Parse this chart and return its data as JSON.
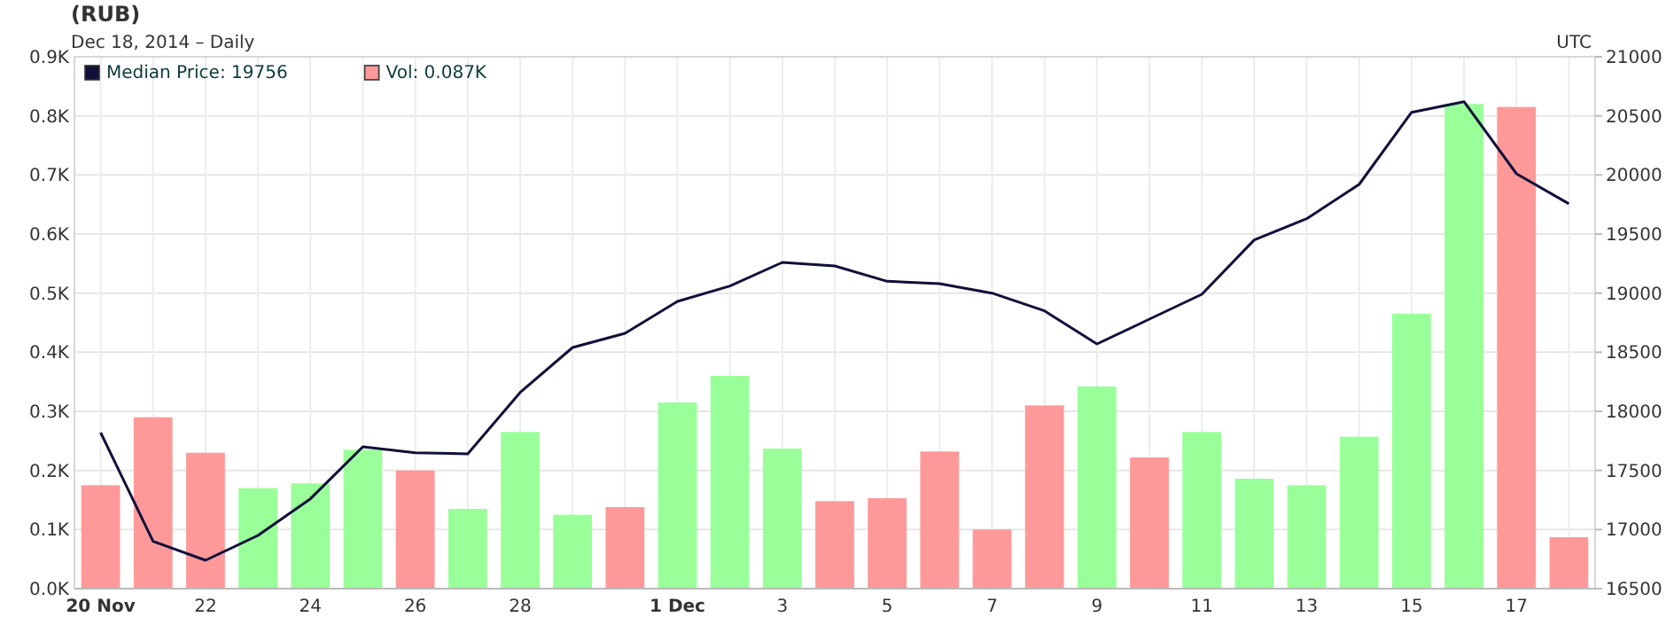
{
  "chart_data": {
    "type": "bar",
    "title": "(RUB)",
    "subtitle": "Dec 18, 2014 – Daily",
    "annotations": [
      "UTC"
    ],
    "x": [
      "2014-11-20",
      "2014-11-21",
      "2014-11-22",
      "2014-11-23",
      "2014-11-24",
      "2014-11-25",
      "2014-11-26",
      "2014-11-27",
      "2014-11-28",
      "2014-11-29",
      "2014-11-30",
      "2014-12-01",
      "2014-12-02",
      "2014-12-03",
      "2014-12-04",
      "2014-12-05",
      "2014-12-06",
      "2014-12-07",
      "2014-12-08",
      "2014-12-09",
      "2014-12-10",
      "2014-12-11",
      "2014-12-12",
      "2014-12-13",
      "2014-12-14",
      "2014-12-15",
      "2014-12-16",
      "2014-12-17",
      "2014-12-18"
    ],
    "xlim": [
      "2014-11-19T12:00",
      "2014-12-18T12:00"
    ],
    "xticks": [
      {
        "value": "2014-11-20",
        "label": "20 Nov"
      },
      {
        "value": "2014-11-21",
        "label": null
      },
      {
        "value": "2014-11-22",
        "label": "22"
      },
      {
        "value": "2014-11-23",
        "label": null
      },
      {
        "value": "2014-11-24",
        "label": "24"
      },
      {
        "value": "2014-11-25",
        "label": null
      },
      {
        "value": "2014-11-26",
        "label": "26"
      },
      {
        "value": "2014-11-27",
        "label": null
      },
      {
        "value": "2014-11-28",
        "label": "28"
      },
      {
        "value": "2014-11-29",
        "label": null
      },
      {
        "value": "2014-11-30",
        "label": null
      },
      {
        "value": "2014-12-01",
        "label": "1 Dec"
      },
      {
        "value": "2014-12-02",
        "label": null
      },
      {
        "value": "2014-12-03",
        "label": "3"
      },
      {
        "value": "2014-12-04",
        "label": null
      },
      {
        "value": "2014-12-05",
        "label": "5"
      },
      {
        "value": "2014-12-06",
        "label": null
      },
      {
        "value": "2014-12-07",
        "label": "7"
      },
      {
        "value": "2014-12-08",
        "label": null
      },
      {
        "value": "2014-12-09",
        "label": "9"
      },
      {
        "value": "2014-12-10",
        "label": null
      },
      {
        "value": "2014-12-11",
        "label": "11"
      },
      {
        "value": "2014-12-12",
        "label": null
      },
      {
        "value": "2014-12-13",
        "label": "13"
      },
      {
        "value": "2014-12-14",
        "label": null
      },
      {
        "value": "2014-12-15",
        "label": "15"
      },
      {
        "value": "2014-12-16",
        "label": null
      },
      {
        "value": "2014-12-17",
        "label": "17"
      },
      {
        "value": "2014-12-18",
        "label": null
      }
    ],
    "ylim": [
      0,
      0.9
    ],
    "yticks": [
      {
        "value": 0,
        "label": "0.0K"
      },
      {
        "value": 0.1,
        "label": "0.1K"
      },
      {
        "value": 0.2,
        "label": "0.2K"
      },
      {
        "value": 0.3,
        "label": "0.3K"
      },
      {
        "value": 0.4,
        "label": "0.4K"
      },
      {
        "value": 0.5,
        "label": "0.5K"
      },
      {
        "value": 0.6,
        "label": "0.6K"
      },
      {
        "value": 0.7,
        "label": "0.7K"
      },
      {
        "value": 0.8,
        "label": "0.8K"
      },
      {
        "value": 0.9,
        "label": "0.9K"
      }
    ],
    "y2lim": [
      16500,
      21000
    ],
    "y2ticks": [
      16500,
      17000,
      17500,
      18000,
      18500,
      19000,
      19500,
      20000,
      20500,
      21000
    ],
    "grid": true,
    "legend": "top left",
    "series": [
      {
        "name": "Median Price: 19756",
        "type": "line",
        "axis": "y2",
        "color": "#10103a",
        "marker": "none",
        "line_style": "solid",
        "values": [
          17820,
          16900,
          16740,
          16950,
          17260,
          17700,
          17650,
          17640,
          18160,
          18540,
          18660,
          18930,
          19060,
          19260,
          19230,
          19100,
          19080,
          19000,
          18850,
          18570,
          18780,
          18990,
          19450,
          19630,
          19920,
          20530,
          20620,
          20010,
          19756
        ]
      },
      {
        "name": "Vol: 0.087K",
        "color": "#ff9999",
        "colors": [
          "#ff9999",
          "#ff9999",
          "#ff9999",
          "#99ff99",
          "#99ff99",
          "#99ff99",
          "#ff9999",
          "#99ff99",
          "#99ff99",
          "#99ff99",
          "#ff9999",
          "#99ff99",
          "#99ff99",
          "#99ff99",
          "#ff9999",
          "#ff9999",
          "#ff9999",
          "#ff9999",
          "#ff9999",
          "#99ff99",
          "#ff9999",
          "#99ff99",
          "#99ff99",
          "#99ff99",
          "#99ff99",
          "#99ff99",
          "#99ff99",
          "#ff9999",
          "#ff9999"
        ],
        "values": [
          0.175,
          0.29,
          0.23,
          0.17,
          0.178,
          0.235,
          0.2,
          0.135,
          0.265,
          0.125,
          0.138,
          0.315,
          0.36,
          0.237,
          0.148,
          0.153,
          0.232,
          0.1,
          0.31,
          0.342,
          0.222,
          0.265,
          0.186,
          0.175,
          0.257,
          0.465,
          0.82,
          0.815,
          0.087
        ]
      }
    ]
  }
}
